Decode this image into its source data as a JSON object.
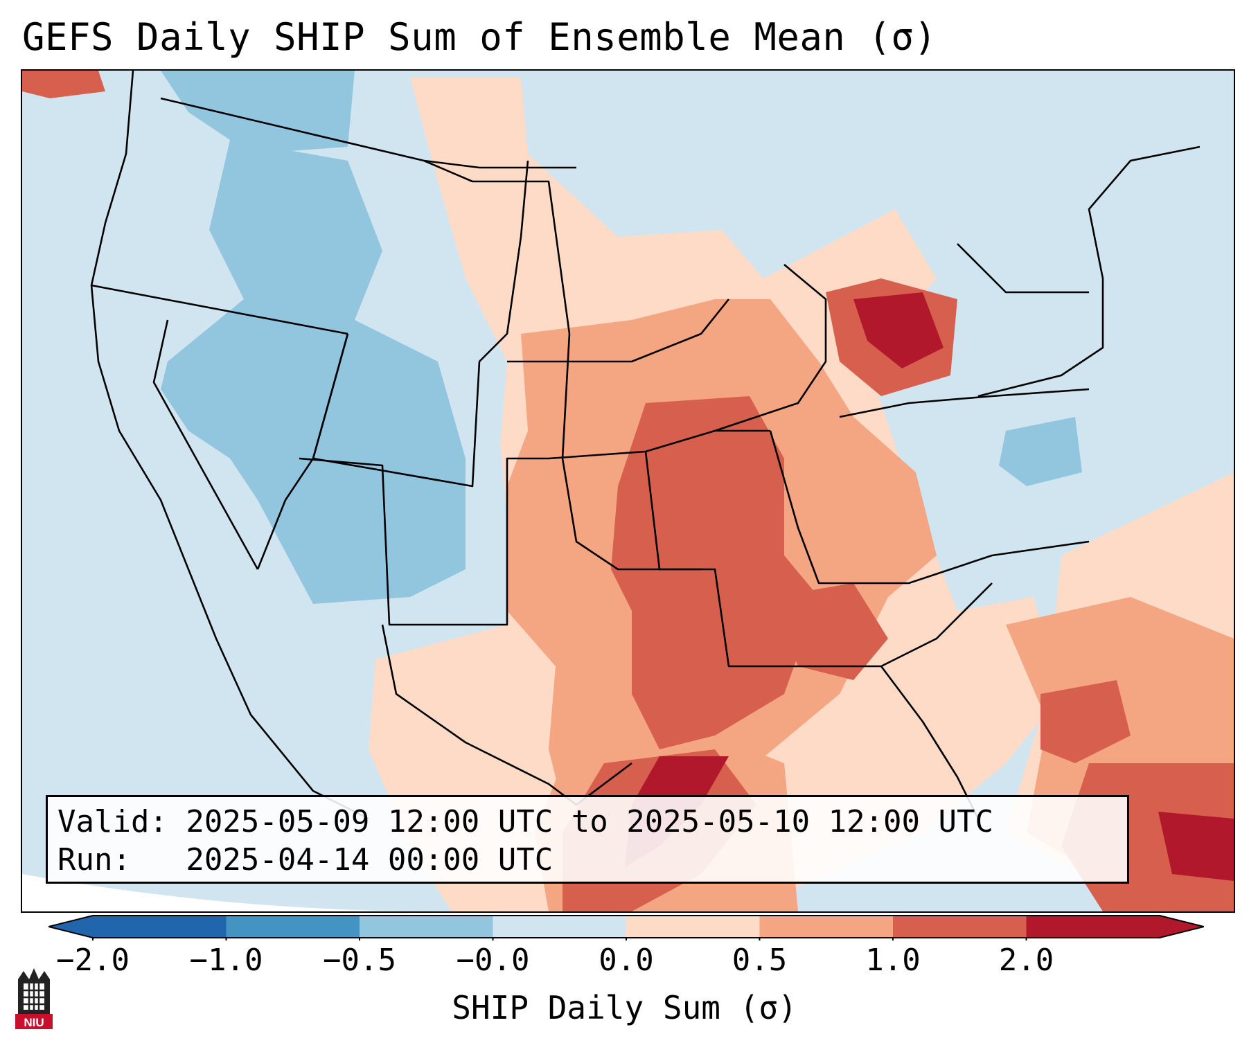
{
  "title": "GEFS Daily SHIP Sum of Ensemble Mean (σ)",
  "valid_line": "Valid: 2025-05-09 12:00 UTC to 2025-05-10 12:00 UTC",
  "run_line": "Run:   2025-04-14 00:00 UTC",
  "colorbar": {
    "label": "SHIP Daily Sum (σ)",
    "ticks": [
      "−2.0",
      "−1.0",
      "−0.5",
      "−0.0",
      "0.0",
      "0.5",
      "1.0",
      "2.0"
    ],
    "colors": [
      "#2166ac",
      "#4393c3",
      "#92c5de",
      "#d1e5f0",
      "#fddbc7",
      "#f4a582",
      "#d6604d",
      "#b2182b"
    ],
    "extend": "both"
  },
  "logo": {
    "name": "NIU",
    "text": "NIU"
  },
  "map": {
    "projection": "Lambert Conformal",
    "region": "Contiguous United States"
  }
}
